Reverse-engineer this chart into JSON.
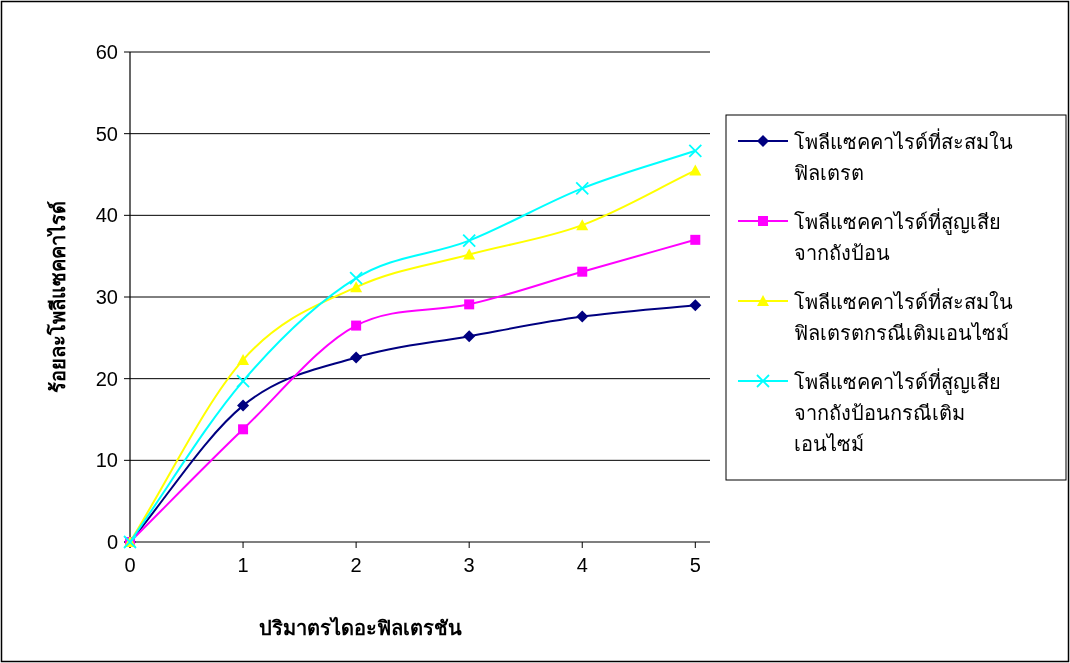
{
  "chart_data": {
    "type": "line",
    "xlabel": "ปริมาตรไดอะฟิลเตรชัน",
    "ylabel": "ร้อยละโพลีแซคคาไรด์",
    "x": [
      0,
      1,
      2,
      3,
      4,
      5
    ],
    "xlim": [
      0,
      5.13
    ],
    "xticks": [
      0,
      1,
      2,
      3,
      4,
      5
    ],
    "ylim": [
      0,
      60
    ],
    "yticks": [
      0,
      10,
      20,
      30,
      40,
      50,
      60
    ],
    "grid": "y",
    "legend": "right",
    "series": [
      {
        "name": "โพลีแซคคาไรด์ที่สะสมในฟิลเตรต",
        "color": "#000080",
        "marker": "diamond",
        "values": [
          0,
          16.7,
          22.6,
          25.2,
          27.6,
          29.0
        ]
      },
      {
        "name": "โพลีแซคคาไรด์ที่สูญเสียจากถังป้อน",
        "color": "#ff00ff",
        "marker": "square",
        "values": [
          0,
          13.8,
          26.5,
          29.1,
          33.1,
          37.0
        ]
      },
      {
        "name": "โพลีแซคคาไรด์ที่สะสมในฟิลเตรตกรณีเติมเอนไซม์",
        "color": "#ffff00",
        "marker": "triangle",
        "values": [
          0,
          22.3,
          31.2,
          35.2,
          38.8,
          45.5
        ]
      },
      {
        "name": "โพลีแซคคาไรด์ที่สูญเสียจากถังป้อนกรณีเติมเอนไซม์",
        "color": "#00ffff",
        "marker": "cross",
        "values": [
          0,
          19.7,
          32.3,
          36.9,
          43.3,
          47.9
        ]
      }
    ]
  }
}
